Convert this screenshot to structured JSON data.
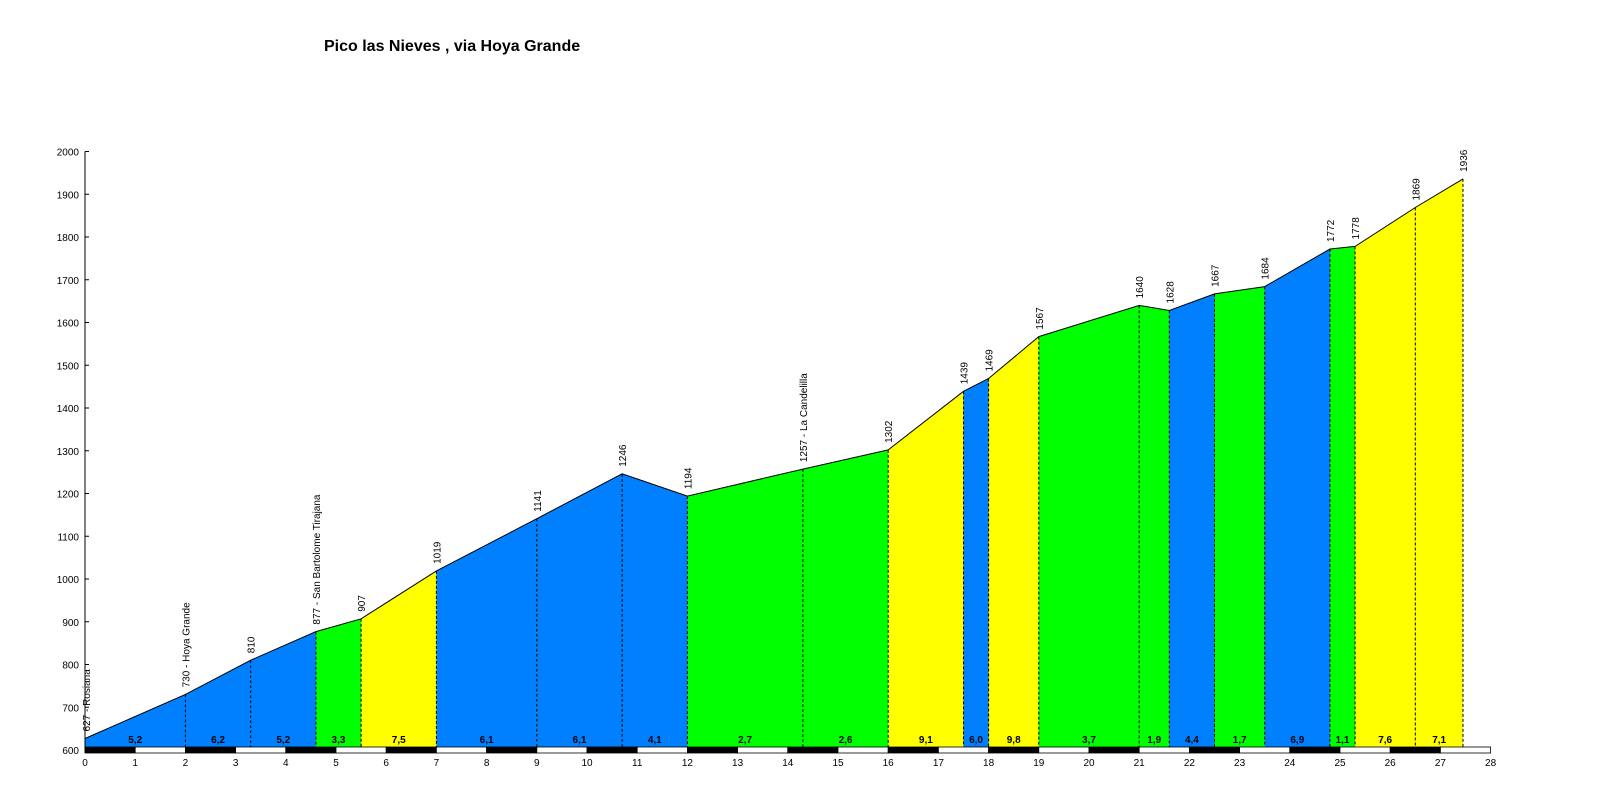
{
  "chart_data": {
    "type": "area",
    "title": "Pico las Nieves , via Hoya Grande",
    "xlabel": "",
    "ylabel": "",
    "xlim": [
      0,
      28
    ],
    "ylim": [
      600,
      2000
    ],
    "x_ticks": [
      "0",
      "1",
      "2",
      "3",
      "4",
      "5",
      "6",
      "7",
      "8",
      "9",
      "10",
      "11",
      "12",
      "13",
      "14",
      "15",
      "16",
      "17",
      "18",
      "19",
      "20",
      "21",
      "22",
      "23",
      "24",
      "25",
      "26",
      "27",
      "28"
    ],
    "y_ticks": [
      "600",
      "700",
      "800",
      "900",
      "1000",
      "1100",
      "1200",
      "1300",
      "1400",
      "1500",
      "1600",
      "1700",
      "1800",
      "1900",
      "2000"
    ],
    "profile": [
      {
        "x": 0.0,
        "y": 627,
        "label": "627 - Rosiana"
      },
      {
        "x": 2.0,
        "y": 730,
        "label": "730 - Hoya Grande"
      },
      {
        "x": 3.3,
        "y": 810,
        "label": "810"
      },
      {
        "x": 4.6,
        "y": 877,
        "label": "877 - San  Bartolome Tirajana"
      },
      {
        "x": 5.5,
        "y": 907,
        "label": "907"
      },
      {
        "x": 7.0,
        "y": 1019,
        "label": "1019"
      },
      {
        "x": 9.0,
        "y": 1141,
        "label": "1141"
      },
      {
        "x": 10.7,
        "y": 1246,
        "label": "1246"
      },
      {
        "x": 12.0,
        "y": 1194,
        "label": "1194"
      },
      {
        "x": 14.3,
        "y": 1257,
        "label": "1257 - La Candelilla"
      },
      {
        "x": 16.0,
        "y": 1302,
        "label": "1302"
      },
      {
        "x": 17.5,
        "y": 1439,
        "label": "1439"
      },
      {
        "x": 18.0,
        "y": 1469,
        "label": "1469"
      },
      {
        "x": 19.0,
        "y": 1567,
        "label": "1567"
      },
      {
        "x": 21.0,
        "y": 1640,
        "label": "1640"
      },
      {
        "x": 21.6,
        "y": 1628,
        "label": "1628"
      },
      {
        "x": 22.5,
        "y": 1667,
        "label": "1667"
      },
      {
        "x": 23.5,
        "y": 1684,
        "label": "1684"
      },
      {
        "x": 24.8,
        "y": 1772,
        "label": "1772"
      },
      {
        "x": 25.3,
        "y": 1778,
        "label": "1778"
      },
      {
        "x": 26.5,
        "y": 1869,
        "label": "1869"
      },
      {
        "x": 27.45,
        "y": 1936,
        "label": "1936"
      }
    ],
    "segments": [
      {
        "gradient": "5,2",
        "color": "#0080ff"
      },
      {
        "gradient": "6,2",
        "color": "#0080ff"
      },
      {
        "gradient": "5,2",
        "color": "#0080ff"
      },
      {
        "gradient": "3,3",
        "color": "#00ff00"
      },
      {
        "gradient": "7,5",
        "color": "#ffff00"
      },
      {
        "gradient": "6,1",
        "color": "#0080ff"
      },
      {
        "gradient": "6,1",
        "color": "#0080ff"
      },
      {
        "gradient": "4,1",
        "color": "#0080ff"
      },
      {
        "gradient": "2,7",
        "color": "#00ff00"
      },
      {
        "gradient": "2,6",
        "color": "#00ff00"
      },
      {
        "gradient": "9,1",
        "color": "#ffff00"
      },
      {
        "gradient": "6,0",
        "color": "#0080ff"
      },
      {
        "gradient": "9,8",
        "color": "#ffff00"
      },
      {
        "gradient": "3,7",
        "color": "#00ff00"
      },
      {
        "gradient": "1,9",
        "color": "#00ff00"
      },
      {
        "gradient": "4,4",
        "color": "#0080ff"
      },
      {
        "gradient": "1,7",
        "color": "#00ff00"
      },
      {
        "gradient": "6,9",
        "color": "#0080ff"
      },
      {
        "gradient": "1,1",
        "color": "#00ff00"
      },
      {
        "gradient": "7,6",
        "color": "#ffff00"
      },
      {
        "gradient": "7,1",
        "color": "#ffff00"
      }
    ],
    "grid": false,
    "legend": "none"
  }
}
